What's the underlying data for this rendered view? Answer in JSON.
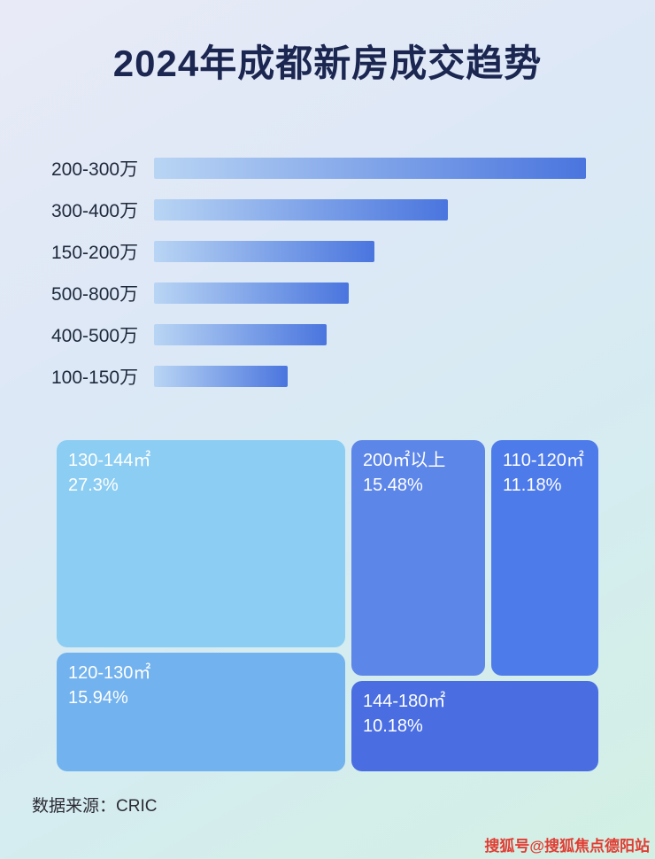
{
  "page": {
    "title": "2024年成都新房成交趋势",
    "source": "数据来源：CRIC",
    "watermark": "搜狐号@搜狐焦点德阳站"
  },
  "colors": {
    "background_top": "#e9eaf7",
    "background_bottom": "#d2f0e3",
    "title_text": "#1b2651",
    "bar_gradient_start": "#b9d5f4",
    "bar_gradient_end": "#4a75de",
    "bar_label_text": "#1e2a3c",
    "treemap_text": "#ffffff",
    "watermark_text": "#e13d33"
  },
  "chart_data": [
    {
      "type": "bar",
      "title": "2024年成都新房成交趋势",
      "orientation": "horizontal",
      "categories": [
        "200-300万",
        "300-400万",
        "150-200万",
        "500-800万",
        "400-500万",
        "100-150万"
      ],
      "values": [
        100,
        68,
        51,
        45,
        40,
        31
      ],
      "value_unit": "relative bar length (max = 100, numeric axis not labeled in image)",
      "grid": false,
      "legend": false
    },
    {
      "type": "treemap",
      "items": [
        {
          "label": "130-144㎡",
          "value": 27.3,
          "value_label": "27.3%",
          "color": "#8ccdf3"
        },
        {
          "label": "200㎡以上",
          "value": 15.48,
          "value_label": "15.48%",
          "color": "#5d86e9"
        },
        {
          "label": "110-120㎡",
          "value": 11.18,
          "value_label": "11.18%",
          "color": "#4e7bea"
        },
        {
          "label": "120-130㎡",
          "value": 15.94,
          "value_label": "15.94%",
          "color": "#72b2ee"
        },
        {
          "label": "144-180㎡",
          "value": 10.18,
          "value_label": "10.18%",
          "color": "#4a6ee2"
        }
      ]
    }
  ]
}
